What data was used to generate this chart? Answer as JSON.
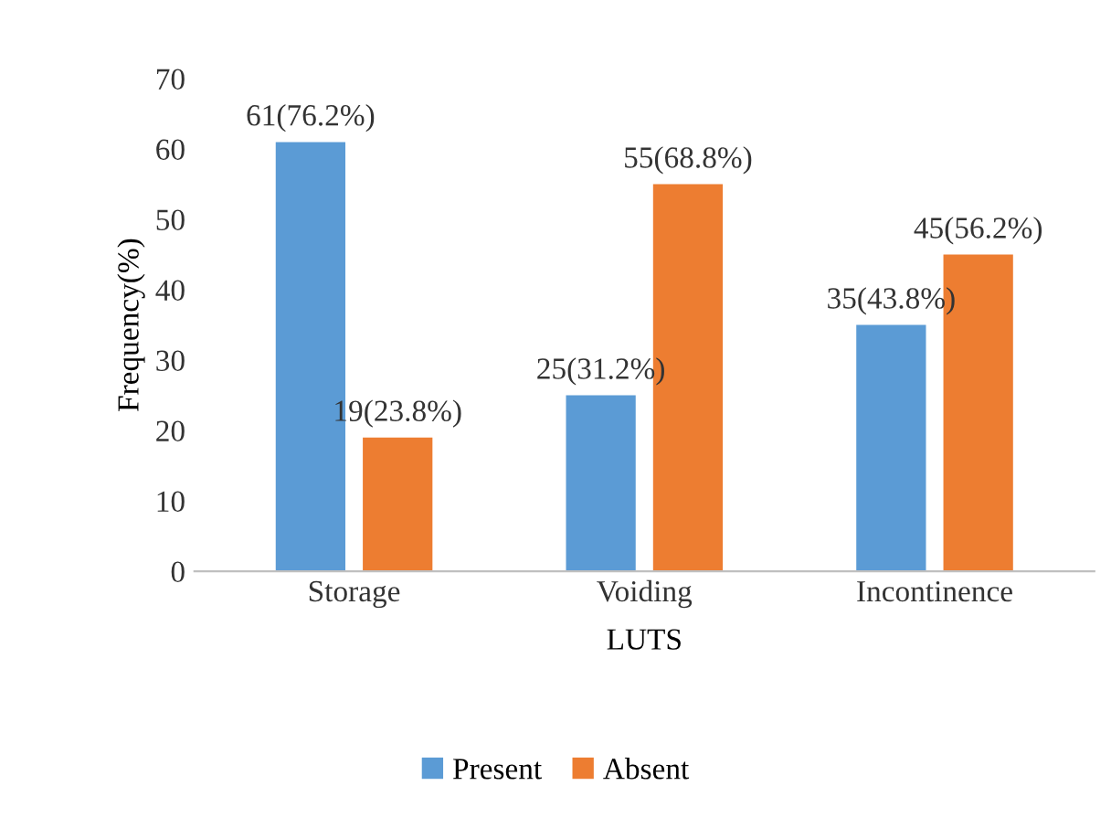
{
  "chart_data": {
    "type": "bar",
    "xlabel": "LUTS",
    "ylabel": "Frequency(%)",
    "categories": [
      "Storage",
      "Voiding",
      "Incontinence"
    ],
    "series": [
      {
        "name": "Present",
        "color": "#5b9bd5",
        "values": [
          61,
          25,
          35
        ],
        "value_labels": [
          "61(76.2%)",
          "25(31.2%)",
          "35(43.8%)"
        ]
      },
      {
        "name": "Absent",
        "color": "#ed7d31",
        "values": [
          19,
          55,
          45
        ],
        "value_labels": [
          "19(23.8%)",
          "55(68.8%)",
          "45(56.2%)"
        ]
      }
    ],
    "ylim": [
      0,
      70
    ],
    "yticks": [
      0,
      10,
      20,
      30,
      40,
      50,
      60,
      70
    ],
    "grid": false,
    "legend": "bottom"
  }
}
